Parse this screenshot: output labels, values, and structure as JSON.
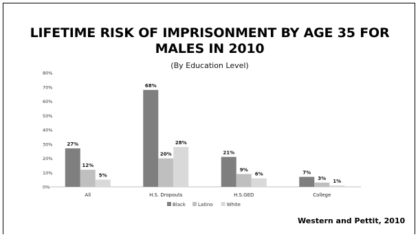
{
  "slide": {
    "title_line1": "LIFETIME RISK OF IMPRISONMENT BY AGE 35 FOR",
    "title_line2": "MALES IN 2010",
    "subtitle": "(By Education Level)",
    "source": "Western and Pettit, 2010"
  },
  "chart_data": {
    "type": "bar",
    "title": "LIFETIME RISK OF IMPRISONMENT BY AGE 35 FOR MALES IN 2010",
    "subtitle": "(By Education Level)",
    "categories": [
      "All",
      "H.S. Dropouts",
      "H.S.GED",
      "College"
    ],
    "series": [
      {
        "name": "Black",
        "color": "#7f7f7f",
        "values": [
          27,
          68,
          21,
          7
        ],
        "labels": [
          "27%",
          "68%",
          "21%",
          "7%"
        ]
      },
      {
        "name": "Latino",
        "color": "#bfbfbf",
        "values": [
          12,
          20,
          9,
          3
        ],
        "labels": [
          "12%",
          "20%",
          "9%",
          "3%"
        ]
      },
      {
        "name": "White",
        "color": "#d9d9d9",
        "values": [
          5,
          28,
          6,
          1
        ],
        "labels": [
          "5%",
          "28%",
          "6%",
          "1%"
        ]
      }
    ],
    "ylim": [
      0,
      80
    ],
    "yticks": [
      "0%",
      "10%",
      "20%",
      "30%",
      "40%",
      "50%",
      "60%",
      "70%",
      "80%"
    ],
    "grid": false,
    "legend_position": "bottom"
  }
}
